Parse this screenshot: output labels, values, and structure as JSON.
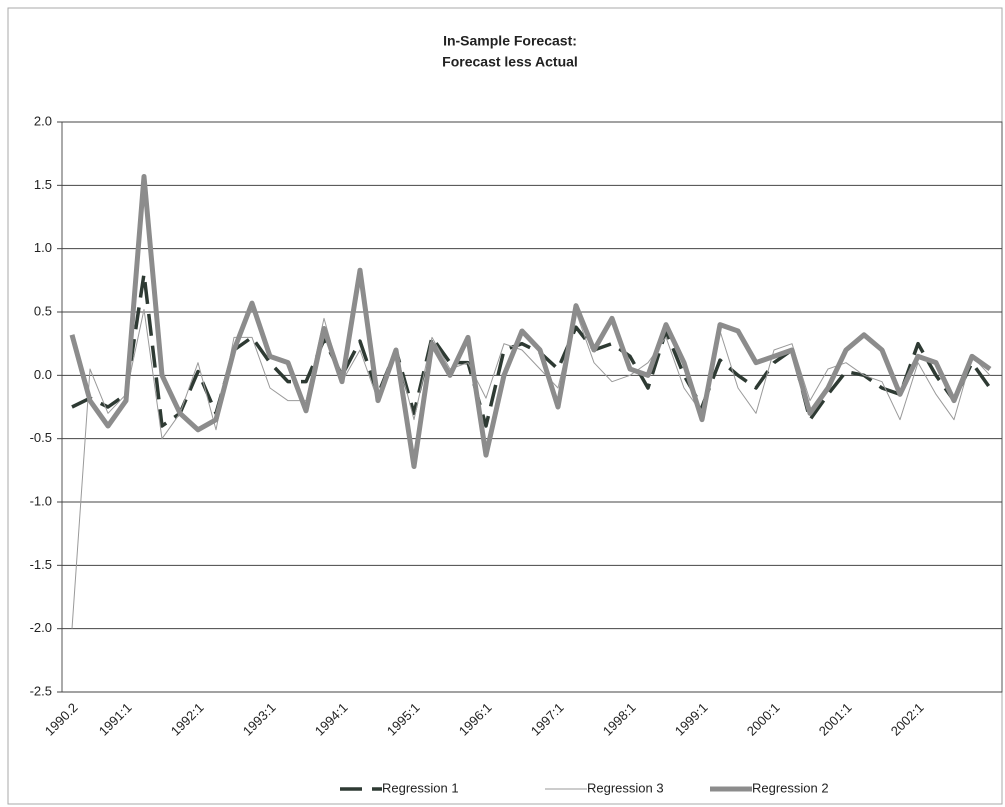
{
  "chart_data": {
    "type": "line",
    "title": "In-Sample Forecast:",
    "subtitle": "Forecast less Actual",
    "categories": [
      "1990.2",
      null,
      null,
      "1991:1",
      null,
      null,
      null,
      "1992:1",
      null,
      null,
      null,
      "1993:1",
      null,
      null,
      null,
      "1994:1",
      null,
      null,
      null,
      "1995:1",
      null,
      null,
      null,
      "1996:1",
      null,
      null,
      null,
      "1997:1",
      null,
      null,
      null,
      "1998:1",
      null,
      null,
      null,
      "1999:1",
      null,
      null,
      null,
      "2000:1",
      null,
      null,
      null,
      "2001:1",
      null,
      null,
      null,
      "2002:1",
      null,
      null,
      null,
      null
    ],
    "series": [
      {
        "name": "Regression 1",
        "color": "#2e3a33",
        "line_style": "dashed",
        "values": [
          -0.25,
          -0.18,
          -0.25,
          -0.15,
          0.8,
          -0.4,
          -0.3,
          0.03,
          -0.3,
          0.2,
          0.3,
          0.1,
          -0.05,
          -0.05,
          0.28,
          0.0,
          0.27,
          -0.15,
          0.2,
          -0.3,
          0.3,
          0.1,
          0.1,
          -0.4,
          0.2,
          0.25,
          0.18,
          0.05,
          0.38,
          0.2,
          0.25,
          0.15,
          -0.1,
          0.35,
          0.0,
          -0.25,
          0.12,
          0.0,
          -0.1,
          0.1,
          0.2,
          -0.35,
          -0.15,
          0.03,
          0.0,
          -0.1,
          -0.15,
          0.25,
          0.0,
          -0.2,
          0.1,
          -0.1
        ]
      },
      {
        "name": "Regression 3",
        "color": "#9a9a9a",
        "line_style": "thin",
        "values": [
          -2.0,
          0.05,
          -0.3,
          -0.15,
          0.52,
          -0.5,
          -0.3,
          0.1,
          -0.43,
          0.3,
          0.3,
          -0.1,
          -0.2,
          -0.2,
          0.45,
          -0.05,
          0.2,
          -0.2,
          0.2,
          -0.35,
          0.3,
          0.05,
          0.1,
          -0.18,
          0.25,
          0.2,
          0.05,
          -0.1,
          0.5,
          0.1,
          -0.05,
          0.0,
          0.1,
          0.3,
          -0.1,
          -0.3,
          0.35,
          -0.1,
          -0.3,
          0.2,
          0.25,
          -0.2,
          0.05,
          0.1,
          0.0,
          -0.05,
          -0.35,
          0.1,
          -0.15,
          -0.35,
          0.15,
          0.0
        ]
      },
      {
        "name": "Regression 2",
        "color": "#8c8c8c",
        "line_style": "thick",
        "values": [
          0.32,
          -0.2,
          -0.4,
          -0.2,
          1.57,
          0.0,
          -0.3,
          -0.43,
          -0.35,
          0.2,
          0.57,
          0.15,
          0.1,
          -0.28,
          0.37,
          -0.05,
          0.83,
          -0.2,
          0.2,
          -0.72,
          0.25,
          0.0,
          0.3,
          -0.63,
          0.0,
          0.35,
          0.2,
          -0.25,
          0.55,
          0.2,
          0.45,
          0.05,
          0.0,
          0.4,
          0.1,
          -0.35,
          0.4,
          0.35,
          0.1,
          0.15,
          0.2,
          -0.3,
          -0.1,
          0.2,
          0.32,
          0.2,
          -0.15,
          0.15,
          0.1,
          -0.2,
          0.15,
          0.05
        ]
      }
    ],
    "ylim": [
      -2.5,
      2.0
    ],
    "yticks": [
      {
        "value": 2.0,
        "label": "2.0"
      },
      1.5,
      {
        "value": 1.0,
        "label": "1.0"
      },
      0.5,
      {
        "value": 0.0,
        "label": "0.0"
      },
      -0.5,
      {
        "value": -1.0,
        "label": "-1.0"
      },
      -1.5,
      {
        "value": -2.0,
        "label": "-2.0"
      },
      -2.5
    ],
    "grid": true,
    "legend": "bottom"
  }
}
